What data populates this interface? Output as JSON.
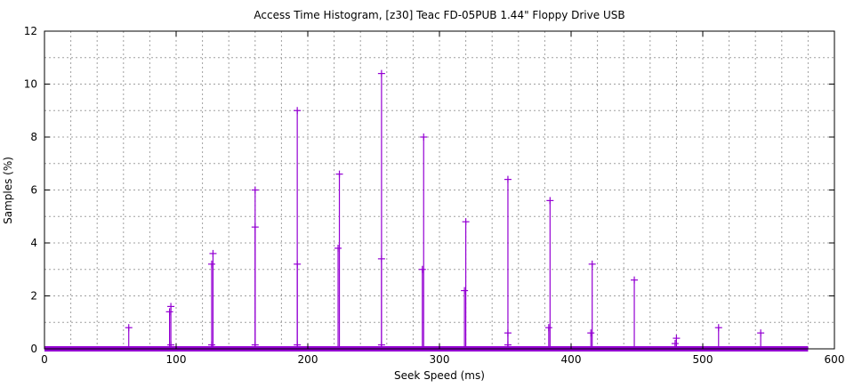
{
  "chart_data": {
    "type": "impulse-scatter",
    "title": "Access Time Histogram, [z30] Teac FD-05PUB 1.44\" Floppy Drive USB",
    "xlabel": "Seek Speed (ms)",
    "ylabel": "Samples (%)",
    "xlim": [
      0,
      600
    ],
    "ylim": [
      0,
      12
    ],
    "xticks": [
      0,
      100,
      200,
      300,
      400,
      500,
      600
    ],
    "yticks": [
      0,
      2,
      4,
      6,
      8,
      10,
      12
    ],
    "grid": true,
    "color": "#9400d3",
    "baseline_range": [
      0,
      580
    ],
    "points": [
      {
        "x": 64,
        "y": 0.8
      },
      {
        "x": 96,
        "y": 1.6
      },
      {
        "x": 95,
        "y": 1.4
      },
      {
        "x": 96,
        "y": 0.15
      },
      {
        "x": 128,
        "y": 3.6
      },
      {
        "x": 127,
        "y": 3.2
      },
      {
        "x": 127,
        "y": 0.15
      },
      {
        "x": 160,
        "y": 6.0
      },
      {
        "x": 160,
        "y": 4.6
      },
      {
        "x": 160,
        "y": 0.15
      },
      {
        "x": 192,
        "y": 9.0
      },
      {
        "x": 192,
        "y": 3.2
      },
      {
        "x": 192,
        "y": 0.15
      },
      {
        "x": 224,
        "y": 6.6
      },
      {
        "x": 223,
        "y": 3.8
      },
      {
        "x": 256,
        "y": 10.4
      },
      {
        "x": 256,
        "y": 3.4
      },
      {
        "x": 256,
        "y": 0.15
      },
      {
        "x": 288,
        "y": 8.0
      },
      {
        "x": 287,
        "y": 3.0
      },
      {
        "x": 320,
        "y": 4.8
      },
      {
        "x": 319,
        "y": 2.2
      },
      {
        "x": 352,
        "y": 6.4
      },
      {
        "x": 352,
        "y": 0.6
      },
      {
        "x": 352,
        "y": 0.15
      },
      {
        "x": 384,
        "y": 5.6
      },
      {
        "x": 383,
        "y": 0.8
      },
      {
        "x": 416,
        "y": 3.2
      },
      {
        "x": 415,
        "y": 0.6
      },
      {
        "x": 448,
        "y": 2.6
      },
      {
        "x": 480,
        "y": 0.4
      },
      {
        "x": 479,
        "y": 0.2
      },
      {
        "x": 512,
        "y": 0.8
      },
      {
        "x": 544,
        "y": 0.6
      }
    ]
  }
}
